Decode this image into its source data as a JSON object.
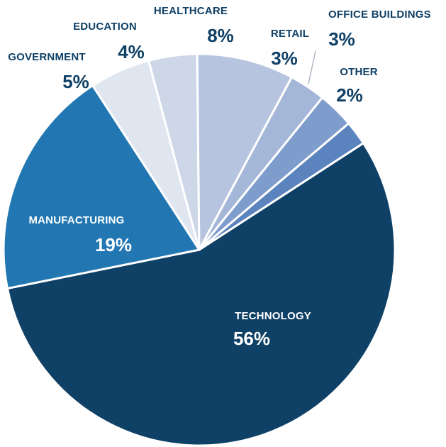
{
  "chart_data": {
    "type": "pie",
    "slices": [
      {
        "label": "TECHNOLOGY",
        "value": 56,
        "value_label": "56%",
        "color": "#0f4066",
        "text_color": "#ffffff"
      },
      {
        "label": "MANUFACTURING",
        "value": 19,
        "value_label": "19%",
        "color": "#2277b2",
        "text_color": "#ffffff"
      },
      {
        "label": "GOVERNMENT",
        "value": 5,
        "value_label": "5%",
        "color": "#dfe6f0",
        "text_color": "#0f4066"
      },
      {
        "label": "EDUCATION",
        "value": 4,
        "value_label": "4%",
        "color": "#cdd7e8",
        "text_color": "#0f4066"
      },
      {
        "label": "HEALTHCARE",
        "value": 8,
        "value_label": "8%",
        "color": "#b6c4df",
        "text_color": "#0f4066"
      },
      {
        "label": "RETAIL",
        "value": 3,
        "value_label": "3%",
        "color": "#a5b7d8",
        "text_color": "#0f4066"
      },
      {
        "label": "OFFICE BUILDINGS",
        "value": 3,
        "value_label": "3%",
        "color": "#7e9ccc",
        "text_color": "#0f4066"
      },
      {
        "label": "OTHER",
        "value": 2,
        "value_label": "2%",
        "color": "#5b83bd",
        "text_color": "#0f4066"
      }
    ]
  }
}
